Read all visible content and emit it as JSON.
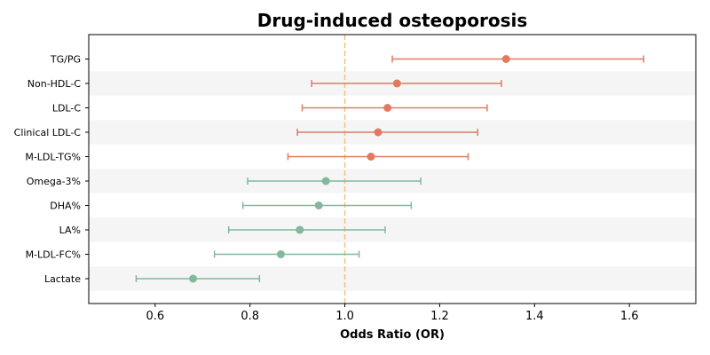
{
  "chart_data": {
    "type": "forest",
    "title": "Drug-induced osteoporosis",
    "xlabel": "Odds Ratio (OR)",
    "ylabel": "",
    "xlim": [
      0.46,
      1.74
    ],
    "xticks": [
      0.6,
      0.8,
      1.0,
      1.2,
      1.4,
      1.6
    ],
    "xtick_labels": [
      "0.6",
      "0.8",
      "1.0",
      "1.2",
      "1.4",
      "1.6"
    ],
    "reference_line": 1.0,
    "reference_color": "#f2c27a",
    "band_color": "#f5f5f5",
    "categories": [
      "TG/PG",
      "Non-HDL-C",
      "LDL-C",
      "Clinical LDL-C",
      "M-LDL-TG%",
      "Omega-3%",
      "DHA%",
      "LA%",
      "M-LDL-FC%",
      "Lactate"
    ],
    "points": [
      {
        "label": "TG/PG",
        "or": 1.34,
        "lower": 1.1,
        "upper": 1.63,
        "color": "#e07b62"
      },
      {
        "label": "Non-HDL-C",
        "or": 1.11,
        "lower": 0.93,
        "upper": 1.33,
        "color": "#e07b62"
      },
      {
        "label": "LDL-C",
        "or": 1.09,
        "lower": 0.91,
        "upper": 1.3,
        "color": "#e07b62"
      },
      {
        "label": "Clinical LDL-C",
        "or": 1.07,
        "lower": 0.9,
        "upper": 1.28,
        "color": "#e07b62"
      },
      {
        "label": "M-LDL-TG%",
        "or": 1.055,
        "lower": 0.88,
        "upper": 1.26,
        "color": "#e07b62"
      },
      {
        "label": "Omega-3%",
        "or": 0.96,
        "lower": 0.795,
        "upper": 1.16,
        "color": "#82b89c"
      },
      {
        "label": "DHA%",
        "or": 0.945,
        "lower": 0.785,
        "upper": 1.14,
        "color": "#82b89c"
      },
      {
        "label": "LA%",
        "or": 0.905,
        "lower": 0.755,
        "upper": 1.085,
        "color": "#82b89c"
      },
      {
        "label": "M-LDL-FC%",
        "or": 0.865,
        "lower": 0.725,
        "upper": 1.03,
        "color": "#82b89c"
      },
      {
        "label": "Lactate",
        "or": 0.68,
        "lower": 0.56,
        "upper": 0.82,
        "color": "#82b89c"
      }
    ]
  }
}
